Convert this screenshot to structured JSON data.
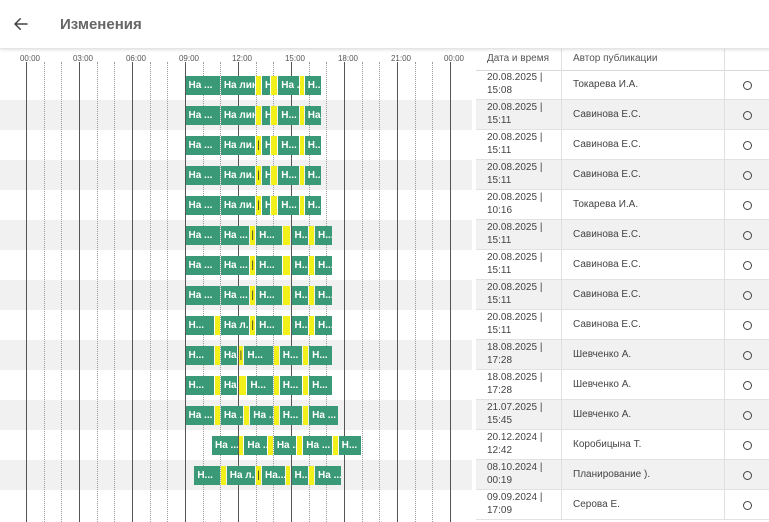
{
  "header": {
    "title": "Изменения",
    "back_icon": "arrow-left-icon"
  },
  "timeline": {
    "ticks": [
      "00:00",
      "03:00",
      "06:00",
      "09:00",
      "12:00",
      "15:00",
      "18:00",
      "21:00",
      "00:00"
    ]
  },
  "table": {
    "columns": [
      "Дата и время",
      "Автор публикации",
      ""
    ],
    "rows": [
      {
        "date": "20.08.2025 |",
        "time": "15:08",
        "author": "Токарева И.А."
      },
      {
        "date": "20.08.2025 |",
        "time": "15:11",
        "author": "Савинова Е.С."
      },
      {
        "date": "20.08.2025 |",
        "time": "15:11",
        "author": "Савинова Е.С."
      },
      {
        "date": "20.08.2025 |",
        "time": "15:11",
        "author": "Савинова Е.С."
      },
      {
        "date": "20.08.2025 |",
        "time": "10:16",
        "author": "Токарева И.А."
      },
      {
        "date": "20.08.2025 |",
        "time": "15:11",
        "author": "Савинова Е.С."
      },
      {
        "date": "20.08.2025 |",
        "time": "15:11",
        "author": "Савинова Е.С."
      },
      {
        "date": "20.08.2025 |",
        "time": "15:11",
        "author": "Савинова Е.С."
      },
      {
        "date": "20.08.2025 |",
        "time": "15:11",
        "author": "Савинова Е.С."
      },
      {
        "date": "18.08.2025 |",
        "time": "17:28",
        "author": "Шевченко А."
      },
      {
        "date": "18.08.2025 |",
        "time": "17:28",
        "author": "Шевченко А."
      },
      {
        "date": "21.07.2025 |",
        "time": "15:45",
        "author": "Шевченко А."
      },
      {
        "date": "20.12.2024 |",
        "time": "12:42",
        "author": "Коробицына Т."
      },
      {
        "date": "08.10.2024 |",
        "time": "00:19",
        "author": "Планирование )."
      },
      {
        "date": "09.09.2024 |",
        "time": "17:09",
        "author": "Серова Е."
      }
    ]
  },
  "shifts": [
    [
      [
        "g",
        "09:00",
        "11:00",
        "На ..."
      ],
      [
        "g",
        "11:00",
        "13:00",
        "На лин..."
      ],
      [
        "y",
        "13:00",
        "13:20",
        ""
      ],
      [
        "g",
        "13:20",
        "13:50",
        "Н"
      ],
      [
        "y",
        "13:50",
        "14:15",
        ""
      ],
      [
        "g",
        "14:15",
        "15:30",
        "На ..."
      ],
      [
        "y",
        "15:30",
        "15:45",
        ""
      ],
      [
        "g",
        "15:45",
        "16:45",
        "Н..."
      ]
    ],
    [
      [
        "g",
        "09:00",
        "11:00",
        "На ..."
      ],
      [
        "g",
        "11:00",
        "13:00",
        "На лин..."
      ],
      [
        "y",
        "13:00",
        "13:20",
        ""
      ],
      [
        "g",
        "13:20",
        "13:50",
        "Н"
      ],
      [
        "y",
        "13:50",
        "14:15",
        ""
      ],
      [
        "g",
        "14:15",
        "15:30",
        "Н..."
      ],
      [
        "y",
        "15:30",
        "15:45",
        ""
      ],
      [
        "g",
        "15:45",
        "16:45",
        "На ..."
      ]
    ],
    [
      [
        "g",
        "09:00",
        "11:00",
        "На ..."
      ],
      [
        "g",
        "11:00",
        "13:00",
        "На ли..."
      ],
      [
        "y",
        "13:00",
        "13:20",
        "|"
      ],
      [
        "g",
        "13:20",
        "13:50",
        "Н..."
      ],
      [
        "y",
        "13:50",
        "14:15",
        ""
      ],
      [
        "g",
        "14:15",
        "15:30",
        "Н..."
      ],
      [
        "y",
        "15:30",
        "15:45",
        ""
      ],
      [
        "g",
        "15:45",
        "16:45",
        "Н..."
      ]
    ],
    [
      [
        "g",
        "09:00",
        "11:00",
        "На ..."
      ],
      [
        "g",
        "11:00",
        "13:00",
        "На ли..."
      ],
      [
        "y",
        "13:00",
        "13:20",
        "|"
      ],
      [
        "g",
        "13:20",
        "13:50",
        "Н..."
      ],
      [
        "y",
        "13:50",
        "14:15",
        ""
      ],
      [
        "g",
        "14:15",
        "15:30",
        "Н..."
      ],
      [
        "y",
        "15:30",
        "15:45",
        ""
      ],
      [
        "g",
        "15:45",
        "16:45",
        "Н..."
      ]
    ],
    [
      [
        "g",
        "09:00",
        "11:00",
        "На ..."
      ],
      [
        "g",
        "11:00",
        "13:00",
        "На ли..."
      ],
      [
        "y",
        "13:00",
        "13:20",
        "|"
      ],
      [
        "g",
        "13:20",
        "13:50",
        "Н"
      ],
      [
        "y",
        "13:50",
        "14:15",
        ""
      ],
      [
        "g",
        "14:15",
        "15:30",
        "Н..."
      ],
      [
        "y",
        "15:30",
        "15:45",
        ""
      ],
      [
        "g",
        "15:45",
        "16:45",
        "Н..."
      ]
    ],
    [
      [
        "g",
        "09:00",
        "11:00",
        "На ..."
      ],
      [
        "g",
        "11:00",
        "12:40",
        "На ..."
      ],
      [
        "y",
        "12:40",
        "13:00",
        "|"
      ],
      [
        "g",
        "13:00",
        "14:30",
        "Н..."
      ],
      [
        "y",
        "14:30",
        "15:00",
        ""
      ],
      [
        "g",
        "15:00",
        "16:00",
        "Н..."
      ],
      [
        "y",
        "16:00",
        "16:20",
        ""
      ],
      [
        "g",
        "16:20",
        "17:20",
        "Н..."
      ]
    ],
    [
      [
        "g",
        "09:00",
        "11:00",
        "На ..."
      ],
      [
        "g",
        "11:00",
        "12:40",
        "На ..."
      ],
      [
        "y",
        "12:40",
        "13:00",
        "|"
      ],
      [
        "g",
        "13:00",
        "14:30",
        "Н..."
      ],
      [
        "y",
        "14:30",
        "15:00",
        ""
      ],
      [
        "g",
        "15:00",
        "16:00",
        "Н..."
      ],
      [
        "y",
        "16:00",
        "16:20",
        ""
      ],
      [
        "g",
        "16:20",
        "17:20",
        "Н..."
      ]
    ],
    [
      [
        "g",
        "09:00",
        "11:00",
        "На ..."
      ],
      [
        "g",
        "11:00",
        "12:40",
        "На ..."
      ],
      [
        "y",
        "12:40",
        "13:00",
        "|"
      ],
      [
        "g",
        "13:00",
        "14:30",
        "Н..."
      ],
      [
        "y",
        "14:30",
        "15:00",
        ""
      ],
      [
        "g",
        "15:00",
        "16:00",
        "Н..."
      ],
      [
        "y",
        "16:00",
        "16:20",
        ""
      ],
      [
        "g",
        "16:20",
        "17:20",
        "Н..."
      ]
    ],
    [
      [
        "g",
        "09:00",
        "10:40",
        "Н..."
      ],
      [
        "y",
        "10:40",
        "11:00",
        ""
      ],
      [
        "g",
        "11:00",
        "12:40",
        "На л..."
      ],
      [
        "y",
        "12:40",
        "13:00",
        "|"
      ],
      [
        "g",
        "13:00",
        "14:30",
        "Н..."
      ],
      [
        "y",
        "14:30",
        "15:00",
        ""
      ],
      [
        "g",
        "15:00",
        "16:00",
        "Н..."
      ],
      [
        "y",
        "16:00",
        "16:20",
        ""
      ],
      [
        "g",
        "16:20",
        "17:20",
        "Н..."
      ]
    ],
    [
      [
        "g",
        "09:00",
        "10:40",
        "Н..."
      ],
      [
        "y",
        "10:40",
        "11:00",
        ""
      ],
      [
        "g",
        "11:00",
        "12:00",
        "На ..."
      ],
      [
        "y",
        "12:00",
        "12:20",
        "|"
      ],
      [
        "g",
        "12:20",
        "14:00",
        "Н..."
      ],
      [
        "y",
        "14:00",
        "14:20",
        ""
      ],
      [
        "g",
        "14:20",
        "15:40",
        "Н..."
      ],
      [
        "y",
        "15:40",
        "16:00",
        ""
      ],
      [
        "g",
        "16:00",
        "17:20",
        "Н..."
      ]
    ],
    [
      [
        "g",
        "09:00",
        "10:40",
        "Н..."
      ],
      [
        "y",
        "10:40",
        "11:00",
        ""
      ],
      [
        "g",
        "11:00",
        "12:00",
        "На ..."
      ],
      [
        "y",
        "12:00",
        "12:30",
        ""
      ],
      [
        "g",
        "12:30",
        "14:00",
        "Н..."
      ],
      [
        "y",
        "14:00",
        "14:20",
        ""
      ],
      [
        "g",
        "14:20",
        "15:40",
        "Н..."
      ],
      [
        "y",
        "15:40",
        "16:00",
        ""
      ],
      [
        "g",
        "16:00",
        "17:20",
        "Н..."
      ]
    ],
    [
      [
        "g",
        "09:00",
        "10:40",
        "На ..."
      ],
      [
        "y",
        "10:40",
        "11:00",
        ""
      ],
      [
        "g",
        "11:00",
        "12:20",
        "На ..."
      ],
      [
        "y",
        "12:20",
        "12:40",
        ""
      ],
      [
        "g",
        "12:40",
        "14:00",
        "На ..."
      ],
      [
        "y",
        "14:00",
        "14:20",
        ""
      ],
      [
        "g",
        "14:20",
        "15:40",
        "Н..."
      ],
      [
        "y",
        "15:40",
        "16:00",
        ""
      ],
      [
        "g",
        "16:00",
        "17:40",
        "На ..."
      ]
    ],
    [
      [
        "g",
        "10:30",
        "12:00",
        "На ..."
      ],
      [
        "y",
        "12:00",
        "12:20",
        ""
      ],
      [
        "g",
        "12:20",
        "13:40",
        "На ..."
      ],
      [
        "y",
        "13:40",
        "14:00",
        ""
      ],
      [
        "g",
        "14:00",
        "15:20",
        "На ..."
      ],
      [
        "y",
        "15:20",
        "15:40",
        ""
      ],
      [
        "g",
        "15:40",
        "17:20",
        "На ..."
      ],
      [
        "y",
        "17:20",
        "17:40",
        ""
      ],
      [
        "g",
        "17:40",
        "19:00",
        "Н..."
      ]
    ],
    [
      [
        "g",
        "09:30",
        "11:00",
        "Н..."
      ],
      [
        "y",
        "11:00",
        "11:20",
        ""
      ],
      [
        "g",
        "11:20",
        "13:00",
        "На л..."
      ],
      [
        "y",
        "13:00",
        "13:20",
        "|"
      ],
      [
        "g",
        "13:20",
        "14:40",
        "На..."
      ],
      [
        "y",
        "14:40",
        "15:00",
        ""
      ],
      [
        "g",
        "15:00",
        "16:00",
        "Н..."
      ],
      [
        "y",
        "16:00",
        "16:20",
        ""
      ],
      [
        "g",
        "16:20",
        "17:50",
        "На ..."
      ]
    ],
    []
  ],
  "colors": {
    "shift": "#3a9a78",
    "break": "#f2f01a"
  }
}
